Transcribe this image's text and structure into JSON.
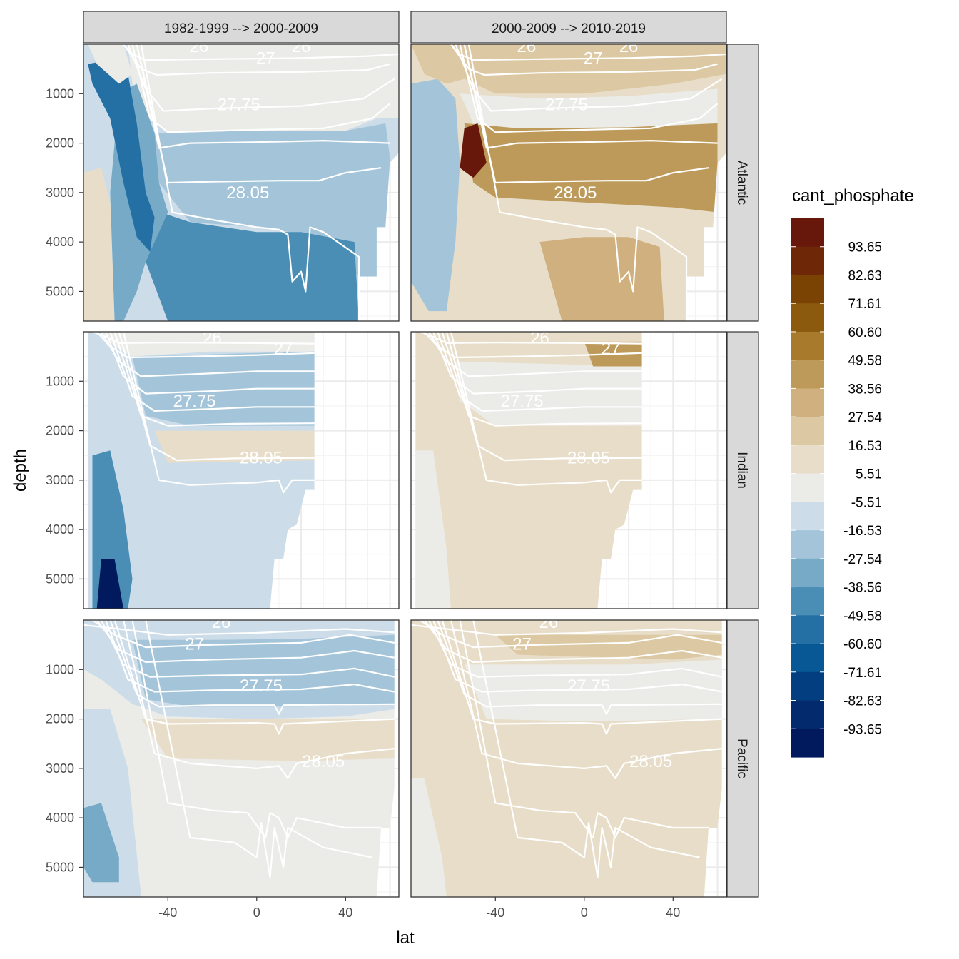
{
  "chart_data": {
    "type": "heatmap",
    "subtype": "faceted filled contour sections",
    "xlabel": "lat",
    "ylabel": "depth",
    "x_ticks": [
      -40,
      0,
      40
    ],
    "y_ticks": [
      1000,
      2000,
      3000,
      4000,
      5000
    ],
    "xlim": [
      -78,
      64
    ],
    "ylim": [
      5600,
      0
    ],
    "columns": [
      {
        "label": "1982-1999 --> 2000-2009"
      },
      {
        "label": "2000-2009 --> 2010-2019"
      }
    ],
    "rows": [
      {
        "label": "Atlantic",
        "lat_extent": [
          -78,
          64
        ]
      },
      {
        "label": "Indian",
        "lat_extent": [
          -76,
          26
        ]
      },
      {
        "label": "Pacific",
        "lat_extent": [
          -78,
          62
        ]
      }
    ],
    "contour_labels": [
      "26",
      "27",
      "27.75",
      "28.05"
    ],
    "legend": {
      "title": "cant_phosphate",
      "breaks": [
        "93.65",
        "82.63",
        "71.61",
        "60.60",
        "49.58",
        "38.56",
        "27.54",
        "16.53",
        "5.51",
        "-5.51",
        "-16.53",
        "-27.54",
        "-38.56",
        "-49.58",
        "-60.60",
        "-71.61",
        "-82.63",
        "-93.65"
      ],
      "colors": [
        "#67180a",
        "#6e2808",
        "#7a4203",
        "#8c5a0e",
        "#a87a2c",
        "#bd9a5a",
        "#cfb07e",
        "#dcc8a2",
        "#e8ddc8",
        "#ebebe8",
        "#ccdde9",
        "#a4c5d9",
        "#76aac7",
        "#4a8eb5",
        "#2470a5",
        "#085896",
        "#033e80",
        "#022a6c",
        "#011a5e"
      ]
    },
    "panels": [
      {
        "row": "Atlantic",
        "col": "1982-1999 --> 2000-2009",
        "layers": [
          {
            "color": "#ccdde9",
            "from": [
              -78,
              0
            ],
            "to": [
              54,
              5600
            ],
            "note": "overall background field"
          },
          {
            "color": "#ebebe8",
            "lat": [
              -58,
              62
            ],
            "depth": [
              0,
              1700
            ]
          },
          {
            "color": "#a4c5d9",
            "lat": [
              -62,
              54
            ],
            "depth": [
              1700,
              4600
            ]
          },
          {
            "color": "#4a8eb5",
            "lat": [
              -52,
              42
            ],
            "depth": [
              3300,
              5600
            ]
          },
          {
            "color": "#e8ddc8",
            "lat": [
              -75,
              -60
            ],
            "depth": [
              2500,
              5600
            ]
          },
          {
            "color": "#2470a5",
            "lat": [
              -74,
              -56
            ],
            "depth": [
              300,
              3500
            ]
          }
        ]
      },
      {
        "row": "Atlantic",
        "col": "2000-2009 --> 2010-2019",
        "layers": [
          {
            "color": "#e8ddc8",
            "lat": [
              -78,
              64
            ],
            "depth": [
              0,
              5600
            ]
          },
          {
            "color": "#dcc8a2",
            "lat": [
              -60,
              60
            ],
            "depth": [
              1000,
              1800
            ]
          },
          {
            "color": "#bd9a5a",
            "lat": [
              -62,
              60
            ],
            "depth": [
              1700,
              3300
            ]
          },
          {
            "color": "#a4c5d9",
            "lat": [
              -78,
              -62
            ],
            "depth": [
              1000,
              5400
            ]
          },
          {
            "color": "#cfb07e",
            "lat": [
              -20,
              36
            ],
            "depth": [
              3900,
              5600
            ]
          }
        ]
      },
      {
        "row": "Indian",
        "col": "1982-1999 --> 2000-2009",
        "layers": [
          {
            "color": "#ccdde9",
            "lat": [
              -76,
              26
            ],
            "depth": [
              0,
              5600
            ]
          },
          {
            "color": "#a4c5d9",
            "lat": [
              -56,
              26
            ],
            "depth": [
              400,
              1900
            ]
          },
          {
            "color": "#e8ddc8",
            "lat": [
              -44,
              26
            ],
            "depth": [
              2000,
              2600
            ]
          },
          {
            "color": "#4a8eb5",
            "lat": [
              -74,
              -56
            ],
            "depth": [
              2500,
              5600
            ]
          },
          {
            "color": "#011a5e",
            "lat": [
              -68,
              -60
            ],
            "depth": [
              4600,
              5600
            ]
          }
        ]
      },
      {
        "row": "Indian",
        "col": "2000-2009 --> 2010-2019",
        "layers": [
          {
            "color": "#e8ddc8",
            "lat": [
              -76,
              26
            ],
            "depth": [
              0,
              5600
            ]
          },
          {
            "color": "#ebebe8",
            "lat": [
              -60,
              26
            ],
            "depth": [
              600,
              1900
            ]
          },
          {
            "color": "#bd9a5a",
            "lat": [
              0,
              26
            ],
            "depth": [
              200,
              700
            ]
          }
        ]
      },
      {
        "row": "Pacific",
        "col": "1982-1999 --> 2000-2009",
        "layers": [
          {
            "color": "#ebebe8",
            "lat": [
              -78,
              62
            ],
            "depth": [
              0,
              5600
            ]
          },
          {
            "color": "#ccdde9",
            "lat": [
              -78,
              62
            ],
            "depth": [
              0,
              2000
            ]
          },
          {
            "color": "#a4c5d9",
            "lat": [
              -56,
              62
            ],
            "depth": [
              300,
              1800
            ]
          },
          {
            "color": "#e8ddc8",
            "lat": [
              -54,
              62
            ],
            "depth": [
              2000,
              2800
            ]
          },
          {
            "color": "#76aac7",
            "lat": [
              -78,
              -62
            ],
            "depth": [
              3800,
              5200
            ]
          }
        ]
      },
      {
        "row": "Pacific",
        "col": "2000-2009 --> 2010-2019",
        "layers": [
          {
            "color": "#e8ddc8",
            "lat": [
              -78,
              62
            ],
            "depth": [
              0,
              5600
            ]
          },
          {
            "color": "#ebebe8",
            "lat": [
              -54,
              62
            ],
            "depth": [
              1000,
              2000
            ]
          },
          {
            "color": "#cfb07e",
            "lat": [
              -40,
              62
            ],
            "depth": [
              300,
              800
            ]
          }
        ]
      }
    ]
  }
}
